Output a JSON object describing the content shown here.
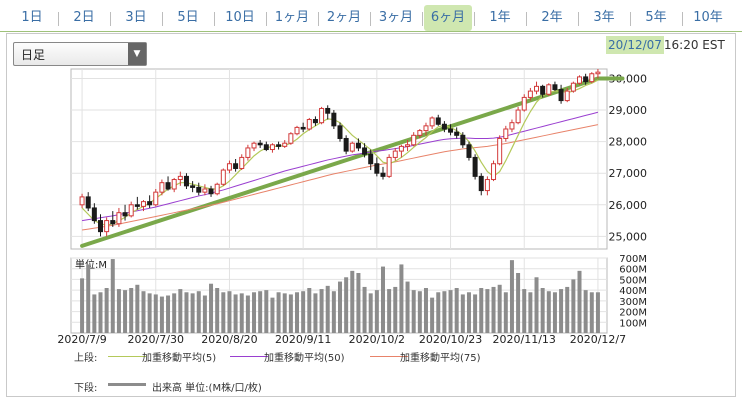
{
  "tabs": [
    {
      "label": "1日"
    },
    {
      "label": "2日"
    },
    {
      "label": "3日"
    },
    {
      "label": "5日"
    },
    {
      "label": "10日"
    },
    {
      "label": "1ヶ月"
    },
    {
      "label": "2ヶ月"
    },
    {
      "label": "3ヶ月"
    },
    {
      "label": "6ヶ月"
    },
    {
      "label": "1年"
    },
    {
      "label": "2年"
    },
    {
      "label": "3年"
    },
    {
      "label": "5年"
    },
    {
      "label": "10年"
    }
  ],
  "active_tab": "6ヶ月",
  "period_select": {
    "value": "日足"
  },
  "timestamp": {
    "date": "20/12/07",
    "time": "16:20 EST"
  },
  "legend": {
    "upper_label": "上段:",
    "lower_label": "下段:",
    "ma5": "加重移動平均(5)",
    "ma50": "加重移動平均(50)",
    "ma75": "加重移動平均(75)",
    "volume": "出来高 単位:(M株/口/枚)"
  },
  "colors": {
    "up": "#d23a3a",
    "down": "#1a1a1a",
    "ma5": "#b4c95a",
    "ma50": "#9a3fd0",
    "ma75": "#e8836a",
    "trend": "#7aa84a",
    "volume": "#8c8c8c",
    "tab_active": "#cfe7b0"
  },
  "chart_data": [
    {
      "type": "candlestick",
      "title": "",
      "x_ticks": [
        "2020/7/9",
        "2020/7/30",
        "2020/8/20",
        "2020/9/11",
        "2020/10/2",
        "2020/10/23",
        "2020/11/13",
        "2020/12/7"
      ],
      "ylim": [
        24600,
        30300
      ],
      "yticks": [
        25000,
        26000,
        27000,
        28000,
        29000,
        30000
      ],
      "grid": true,
      "candles": [
        [
          26000,
          26350,
          25900,
          26250
        ],
        [
          26250,
          26400,
          25800,
          25900
        ],
        [
          25900,
          26050,
          25400,
          25500
        ],
        [
          25500,
          25700,
          25000,
          25150
        ],
        [
          25150,
          25600,
          25000,
          25500
        ],
        [
          25500,
          25800,
          25300,
          25400
        ],
        [
          25400,
          25900,
          25300,
          25750
        ],
        [
          25750,
          26000,
          25500,
          25650
        ],
        [
          25650,
          26100,
          25600,
          26000
        ],
        [
          26000,
          26250,
          25850,
          25950
        ],
        [
          25950,
          26150,
          25800,
          26100
        ],
        [
          26100,
          26300,
          25900,
          26000
        ],
        [
          26000,
          26500,
          25950,
          26400
        ],
        [
          26400,
          26800,
          26300,
          26700
        ],
        [
          26700,
          26900,
          26450,
          26500
        ],
        [
          26500,
          26850,
          26400,
          26800
        ],
        [
          26800,
          27050,
          26600,
          26900
        ],
        [
          26900,
          27000,
          26500,
          26600
        ],
        [
          26600,
          26750,
          26400,
          26550
        ],
        [
          26550,
          26700,
          26300,
          26400
        ],
        [
          26400,
          26650,
          26300,
          26500
        ],
        [
          26500,
          26600,
          26250,
          26350
        ],
        [
          26350,
          26700,
          26300,
          26650
        ],
        [
          26650,
          27150,
          26600,
          27100
        ],
        [
          27100,
          27400,
          27000,
          27300
        ],
        [
          27300,
          27450,
          27050,
          27150
        ],
        [
          27150,
          27600,
          27100,
          27500
        ],
        [
          27500,
          27900,
          27400,
          27800
        ],
        [
          27800,
          28000,
          27700,
          27950
        ],
        [
          27950,
          28050,
          27800,
          27900
        ],
        [
          27900,
          28000,
          27700,
          27750
        ],
        [
          27750,
          27950,
          27650,
          27900
        ],
        [
          27900,
          28000,
          27750,
          27850
        ],
        [
          27850,
          28050,
          27800,
          27950
        ],
        [
          27950,
          28300,
          27900,
          28250
        ],
        [
          28250,
          28500,
          28200,
          28450
        ],
        [
          28450,
          28600,
          28300,
          28400
        ],
        [
          28400,
          28750,
          28350,
          28700
        ],
        [
          28700,
          28800,
          28500,
          28600
        ],
        [
          28600,
          29100,
          28550,
          29050
        ],
        [
          29050,
          29150,
          28700,
          28900
        ],
        [
          28900,
          29000,
          28400,
          28500
        ],
        [
          28500,
          28600,
          28000,
          28100
        ],
        [
          28100,
          28200,
          27600,
          27700
        ],
        [
          27700,
          28000,
          27650,
          27950
        ],
        [
          27950,
          28100,
          27700,
          27800
        ],
        [
          27800,
          27950,
          27500,
          27600
        ],
        [
          27600,
          27750,
          27100,
          27300
        ],
        [
          27300,
          27500,
          26900,
          27000
        ],
        [
          27000,
          27200,
          26800,
          26900
        ],
        [
          26900,
          27600,
          26850,
          27500
        ],
        [
          27500,
          27800,
          27400,
          27700
        ],
        [
          27700,
          27900,
          27500,
          27850
        ],
        [
          27850,
          28050,
          27700,
          27900
        ],
        [
          27900,
          28300,
          27850,
          28200
        ],
        [
          28200,
          28400,
          28100,
          28350
        ],
        [
          28350,
          28600,
          28200,
          28500
        ],
        [
          28500,
          28800,
          28400,
          28750
        ],
        [
          28750,
          28850,
          28500,
          28550
        ],
        [
          28550,
          28650,
          28300,
          28400
        ],
        [
          28400,
          28550,
          28200,
          28300
        ],
        [
          28300,
          28450,
          28100,
          28200
        ],
        [
          28200,
          28300,
          27800,
          27900
        ],
        [
          27900,
          28000,
          27400,
          27500
        ],
        [
          27500,
          27600,
          26800,
          26900
        ],
        [
          26900,
          27000,
          26300,
          26450
        ],
        [
          26450,
          26900,
          26300,
          26800
        ],
        [
          26800,
          27400,
          26750,
          27300
        ],
        [
          27300,
          28200,
          27250,
          28100
        ],
        [
          28100,
          28500,
          28000,
          28400
        ],
        [
          28400,
          28700,
          28300,
          28600
        ],
        [
          28600,
          29100,
          28550,
          29000
        ],
        [
          29000,
          29500,
          28950,
          29400
        ],
        [
          29400,
          29700,
          29300,
          29600
        ],
        [
          29600,
          29900,
          29500,
          29750
        ],
        [
          29750,
          29800,
          29400,
          29500
        ],
        [
          29500,
          29850,
          29450,
          29800
        ],
        [
          29800,
          29900,
          29600,
          29650
        ],
        [
          29650,
          29800,
          29200,
          29300
        ],
        [
          29300,
          29700,
          29250,
          29600
        ],
        [
          29600,
          29900,
          29550,
          29850
        ],
        [
          29850,
          30100,
          29800,
          30050
        ],
        [
          30050,
          30150,
          29800,
          29900
        ],
        [
          29900,
          30200,
          29850,
          30150
        ],
        [
          30150,
          30300,
          30000,
          30200
        ]
      ],
      "ma5": [
        25900,
        25700,
        25500,
        25400,
        25350,
        25400,
        25500,
        25600,
        25750,
        25850,
        25950,
        26050,
        26200,
        26350,
        26500,
        26600,
        26700,
        26700,
        26650,
        26600,
        26550,
        26500,
        26500,
        26600,
        26750,
        26950,
        27150,
        27350,
        27550,
        27700,
        27800,
        27850,
        27850,
        27880,
        27950,
        28080,
        28250,
        28380,
        28500,
        28620,
        28720,
        28700,
        28600,
        28400,
        28200,
        28050,
        27900,
        27750,
        27550,
        27350,
        27300,
        27380,
        27500,
        27650,
        27820,
        27980,
        28130,
        28320,
        28470,
        28520,
        28450,
        28350,
        28200,
        28000,
        27700,
        27350,
        27050,
        26900,
        27050,
        27400,
        27800,
        28200,
        28600,
        28950,
        29250,
        29450,
        29550,
        29600,
        29600,
        29550,
        29600,
        29680,
        29780,
        29850,
        29950
      ],
      "ma50": [
        25500,
        25530,
        25560,
        25590,
        25620,
        25650,
        25690,
        25730,
        25770,
        25810,
        25850,
        25890,
        25930,
        25980,
        26030,
        26080,
        26130,
        26180,
        26230,
        26280,
        26320,
        26370,
        26420,
        26470,
        26530,
        26590,
        26650,
        26710,
        26770,
        26830,
        26890,
        26950,
        27010,
        27070,
        27120,
        27170,
        27220,
        27270,
        27320,
        27370,
        27420,
        27460,
        27500,
        27540,
        27580,
        27610,
        27640,
        27670,
        27700,
        27720,
        27750,
        27780,
        27810,
        27840,
        27880,
        27920,
        27960,
        28000,
        28040,
        28070,
        28090,
        28100,
        28110,
        28110,
        28100,
        28100,
        28100,
        28110,
        28140,
        28180,
        28230,
        28280,
        28330,
        28380,
        28430,
        28480,
        28530,
        28580,
        28630,
        28680,
        28730,
        28780,
        28830,
        28880,
        28930
      ],
      "ma75": [
        25200,
        25230,
        25260,
        25290,
        25320,
        25350,
        25390,
        25430,
        25470,
        25510,
        25550,
        25590,
        25630,
        25670,
        25710,
        25750,
        25790,
        25830,
        25870,
        25910,
        25950,
        25990,
        26030,
        26080,
        26130,
        26180,
        26230,
        26280,
        26330,
        26380,
        26430,
        26480,
        26530,
        26580,
        26630,
        26680,
        26730,
        26780,
        26830,
        26880,
        26930,
        26980,
        27020,
        27060,
        27100,
        27140,
        27180,
        27220,
        27260,
        27290,
        27320,
        27360,
        27400,
        27440,
        27480,
        27520,
        27560,
        27600,
        27640,
        27680,
        27710,
        27740,
        27770,
        27790,
        27810,
        27830,
        27850,
        27880,
        27910,
        27940,
        27980,
        28020,
        28060,
        28100,
        28140,
        28180,
        28220,
        28260,
        28300,
        28340,
        28380,
        28420,
        28460,
        28500,
        28540
      ],
      "trend": [
        [
          0,
          24700
        ],
        [
          84,
          30000
        ],
        [
          88,
          30000
        ]
      ],
      "volume_ylim": [
        0,
        700
      ],
      "volume_yticks": [
        100,
        200,
        300,
        400,
        500,
        600,
        700
      ],
      "volume_label": "単位:M",
      "volume": [
        510,
        640,
        360,
        380,
        420,
        690,
        410,
        400,
        420,
        450,
        390,
        370,
        360,
        340,
        350,
        370,
        410,
        380,
        370,
        390,
        350,
        460,
        420,
        380,
        390,
        360,
        370,
        350,
        380,
        390,
        400,
        330,
        380,
        370,
        360,
        380,
        390,
        420,
        370,
        410,
        440,
        390,
        480,
        520,
        580,
        560,
        430,
        370,
        400,
        620,
        410,
        430,
        640,
        480,
        400,
        390,
        420,
        330,
        380,
        390,
        400,
        420,
        360,
        380,
        360,
        420,
        410,
        430,
        450,
        380,
        680,
        560,
        410,
        380,
        520,
        420,
        390,
        380,
        410,
        430,
        500,
        580,
        400,
        380,
        380
      ]
    }
  ]
}
